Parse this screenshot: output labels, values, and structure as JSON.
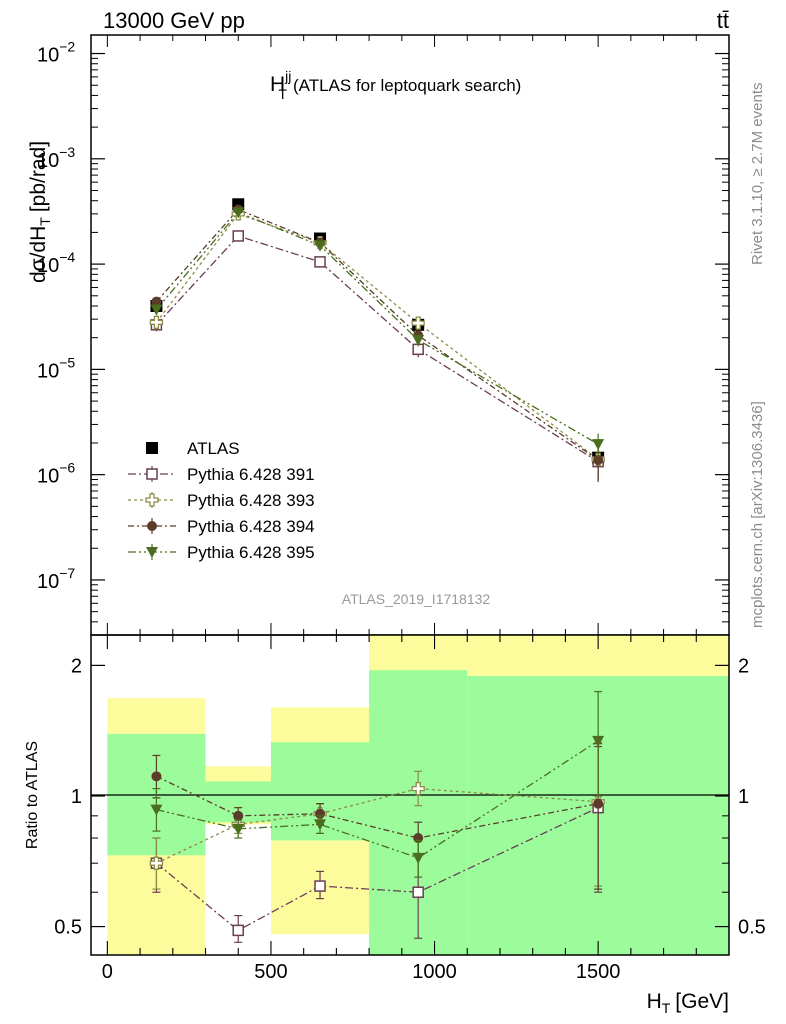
{
  "header": {
    "left": "13000 GeV pp",
    "right": "tt̄",
    "side_top": "Rivet 3.1.10, ≥ 2.7M events",
    "side_bottom": "mcplots.cern.ch [arXiv:1306.3436]"
  },
  "colors": {
    "atlas": "#000000",
    "py391": "#6b3d53",
    "py393": "#8c8c46",
    "py394": "#5a3c28",
    "py395": "#4a6e1e",
    "band_inner": "#9cfc9c",
    "band_outer": "#fcfc9c"
  },
  "chart_data": [
    {
      "type": "line",
      "title": "H",
      "title_sup": "jj",
      "title_sub": "T",
      "title_rest": "(ATLAS for leptoquark search)",
      "ylabel": "dσ/dH",
      "ylabel_sub": "T",
      "ylabel_rest": "[pb/rad]",
      "yscale": "log",
      "ylim": [
        3e-08,
        0.015
      ],
      "xlim": [
        -50,
        1900
      ],
      "y_ticks": [
        {
          "value": 0.01,
          "base": "10",
          "exp": "−2"
        },
        {
          "value": 0.001,
          "base": "10",
          "exp": "−3"
        },
        {
          "value": 0.0001,
          "base": "10",
          "exp": "−4"
        },
        {
          "value": 1e-05,
          "base": "10",
          "exp": "−5"
        },
        {
          "value": 1e-06,
          "base": "10",
          "exp": "−6"
        },
        {
          "value": 1e-07,
          "base": "10",
          "exp": "−7"
        }
      ],
      "watermark": "ATLAS_2019_I1718132",
      "legend_position": "bottom-left",
      "x": [
        150,
        400,
        650,
        950,
        1500
      ],
      "series": [
        {
          "name": "ATLAS",
          "marker": "square-filled",
          "color_key": "atlas",
          "values": [
            4e-05,
            0.00037,
            0.000175,
            2.65e-05,
            1.45e-06
          ],
          "xerr": [
            150,
            100,
            150,
            150,
            400
          ]
        },
        {
          "name": "Pythia 6.428 391",
          "marker": "square-open",
          "color_key": "py391",
          "values": [
            2.65e-05,
            0.000185,
            0.000105,
            1.55e-05,
            1.33e-06
          ],
          "err_lo": [
            2.3e-05,
            0.000175,
            0.0001,
            1.3e-05,
            8.5e-07
          ],
          "err_hi": [
            3e-05,
            0.000195,
            0.00011,
            1.8e-05,
            1.8e-06
          ]
        },
        {
          "name": "Pythia 6.428 393",
          "marker": "cross-open",
          "color_key": "py393",
          "values": [
            2.8e-05,
            0.0003,
            0.00016,
            2.75e-05,
            1.4e-06
          ],
          "err_lo": [
            2.4e-05,
            0.000285,
            0.000152,
            2.4e-05,
            9e-07
          ],
          "err_hi": [
            3.2e-05,
            0.000315,
            0.000168,
            3.1e-05,
            1.9e-06
          ]
        },
        {
          "name": "Pythia 6.428 394",
          "marker": "circle-filled",
          "color_key": "py394",
          "values": [
            4.4e-05,
            0.00033,
            0.00016,
            2.1e-05,
            1.38e-06
          ],
          "err_lo": [
            4e-05,
            0.000315,
            0.000152,
            1.85e-05,
            8.8e-07
          ],
          "err_hi": [
            4.8e-05,
            0.000345,
            0.000168,
            2.35e-05,
            1.88e-06
          ]
        },
        {
          "name": "Pythia 6.428 395",
          "marker": "triangle-down-filled",
          "color_key": "py395",
          "values": [
            3.7e-05,
            0.00031,
            0.00015,
            1.9e-05,
            1.95e-06
          ],
          "err_lo": [
            3.3e-05,
            0.000295,
            0.000142,
            1.65e-05,
            1.45e-06
          ],
          "err_hi": [
            4.1e-05,
            0.000325,
            0.000158,
            2.15e-05,
            2.45e-06
          ]
        }
      ]
    },
    {
      "type": "line",
      "ylabel": "Ratio to ATLAS",
      "xlabel": "H",
      "xlabel_sub": "T",
      "xlabel_rest": "[GeV]",
      "yscale": "log",
      "ylim": [
        0.43,
        2.35
      ],
      "xlim": [
        -50,
        1900
      ],
      "y_ticks": [
        {
          "value": 0.5,
          "label": "0.5"
        },
        {
          "value": 1,
          "label": "1"
        },
        {
          "value": 2,
          "label": "2"
        }
      ],
      "x_ticks": [
        {
          "value": 0,
          "label": "0"
        },
        {
          "value": 500,
          "label": "500"
        },
        {
          "value": 1000,
          "label": "1000"
        },
        {
          "value": 1500,
          "label": "1500"
        }
      ],
      "reference_line": 1,
      "bands": [
        {
          "x0": 0,
          "x1": 300,
          "inner": [
            0.73,
            1.39
          ],
          "outer": [
            0.4,
            1.68
          ]
        },
        {
          "x0": 300,
          "x1": 500,
          "inner": [
            0.87,
            1.08
          ],
          "outer": [
            0.86,
            1.17
          ]
        },
        {
          "x0": 500,
          "x1": 800,
          "inner": [
            0.79,
            1.33
          ],
          "outer": [
            0.48,
            1.6
          ]
        },
        {
          "x0": 800,
          "x1": 1100,
          "inner": [
            0.4,
            1.95
          ],
          "outer": [
            0.4,
            2.4
          ]
        },
        {
          "x0": 1100,
          "x1": 1900,
          "inner": [
            0.4,
            1.89
          ],
          "outer": [
            0.4,
            2.4
          ]
        }
      ],
      "x": [
        150,
        400,
        650,
        950,
        1500
      ],
      "series": [
        {
          "name": "Pythia 6.428 391",
          "marker": "square-open",
          "color_key": "py391",
          "values": [
            0.7,
            0.49,
            0.62,
            0.6,
            0.94
          ],
          "err_lo": [
            0.6,
            0.46,
            0.58,
            0.47,
            0.6
          ],
          "err_hi": [
            0.8,
            0.53,
            0.67,
            0.73,
            1.3
          ]
        },
        {
          "name": "Pythia 6.428 393",
          "marker": "cross-open",
          "color_key": "py393",
          "values": [
            0.7,
            0.86,
            0.91,
            1.04,
            0.97
          ],
          "err_lo": [
            0.61,
            0.82,
            0.86,
            0.95,
            0.62
          ],
          "err_hi": [
            0.8,
            0.9,
            0.96,
            1.14,
            1.33
          ]
        },
        {
          "name": "Pythia 6.428 394",
          "marker": "circle-filled",
          "color_key": "py394",
          "values": [
            1.11,
            0.9,
            0.91,
            0.8,
            0.96
          ],
          "err_lo": [
            0.99,
            0.86,
            0.86,
            0.73,
            0.61
          ],
          "err_hi": [
            1.24,
            0.94,
            0.96,
            0.87,
            1.32
          ]
        },
        {
          "name": "Pythia 6.428 395",
          "marker": "triangle-down-filled",
          "color_key": "py395",
          "values": [
            0.93,
            0.84,
            0.86,
            0.72,
            1.34
          ],
          "err_lo": [
            0.83,
            0.8,
            0.82,
            0.65,
            1.0
          ],
          "err_hi": [
            1.04,
            0.88,
            0.9,
            0.79,
            1.74
          ]
        }
      ]
    }
  ]
}
